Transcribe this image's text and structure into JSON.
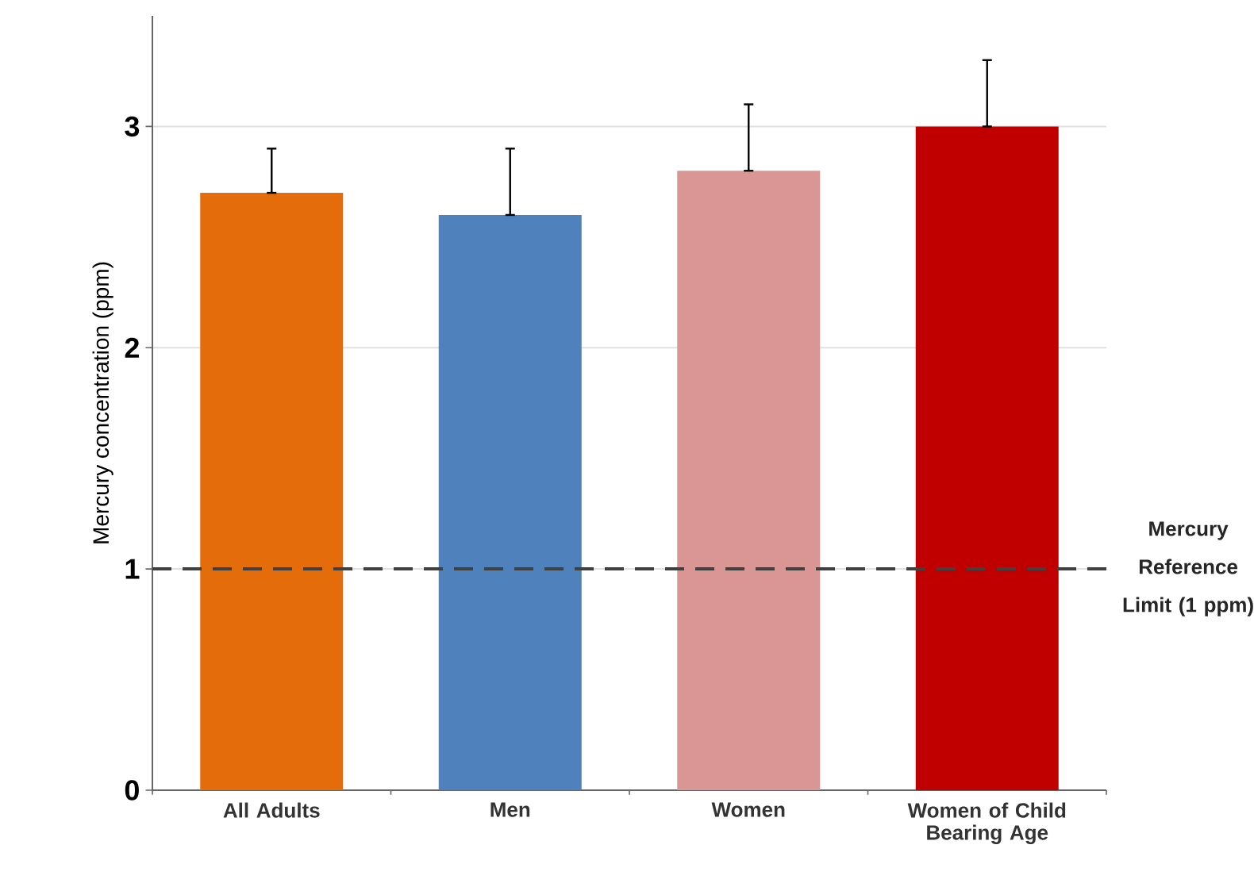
{
  "chart_data": {
    "type": "bar",
    "ylabel": "Mercury concentration (ppm)",
    "categories": [
      "All Adults",
      "Men",
      "Women",
      "Women of Child Bearing Age"
    ],
    "values": [
      2.7,
      2.6,
      2.8,
      3.0
    ],
    "colors": [
      "#e46c0a",
      "#4f81bd",
      "#d99694",
      "#c00000"
    ],
    "errors": [
      [
        2.7,
        2.9
      ],
      [
        2.6,
        2.9
      ],
      [
        2.8,
        3.1
      ],
      [
        3.0,
        3.3
      ]
    ],
    "ylim": [
      0,
      3.5
    ],
    "yticks": [
      0,
      1,
      2,
      3
    ],
    "grid": "y",
    "ref_lines": [
      {
        "axis": "y",
        "value": 1,
        "label": "Mercury Reference Limit (1 ppm)",
        "color": "#404040",
        "line_style": "dashed"
      }
    ]
  }
}
